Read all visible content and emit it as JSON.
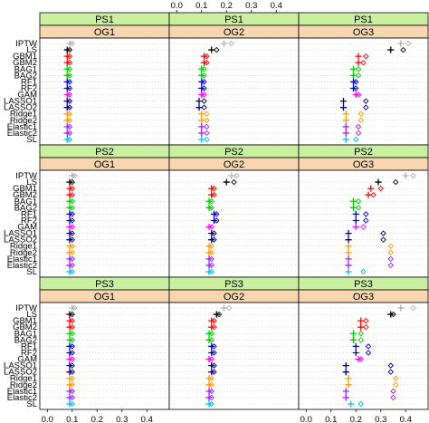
{
  "chart_data": {
    "type": "scatter",
    "x_ticks": [
      0.0,
      0.1,
      0.2,
      0.3,
      0.4
    ],
    "x_tick_labels": [
      "0.0",
      "0.1",
      "0.2",
      "0.3",
      "0.4"
    ],
    "xlim": [
      -0.03,
      0.49
    ],
    "methods": [
      "IPTW",
      "LS",
      "GBM1",
      "GBM2",
      "BAG1",
      "BAG2",
      "RF1",
      "RF2",
      "GAM",
      "LASSO1",
      "LASSO2",
      "Ridge1",
      "Ridge2",
      "Elastic1",
      "Elastic2",
      "SL"
    ],
    "method_colors": [
      "#b0b0b0",
      "#000000",
      "#ff0000",
      "#ff0000",
      "#00cc00",
      "#00cc00",
      "#0000cc",
      "#0000cc",
      "#ff00ff",
      "#000080",
      "#000080",
      "#ff9900",
      "#ff9900",
      "#a020f0",
      "#a020f0",
      "#00c0e0"
    ],
    "row_strips": [
      "PS1",
      "PS2",
      "PS3"
    ],
    "col_strips": [
      "OG1",
      "OG2",
      "OG3"
    ],
    "colors": {
      "ps_strip": "#c8f0a0",
      "og_strip": "#f8d6b0",
      "grid": "#cccccc"
    },
    "panels": [
      [
        {
          "plus": [
            0.09,
            0.08,
            0.08,
            0.08,
            0.08,
            0.08,
            0.08,
            0.08,
            0.08,
            0.08,
            0.08,
            0.08,
            0.08,
            0.08,
            0.08,
            0.08
          ],
          "diamond": [
            0.1,
            0.09,
            0.09,
            0.09,
            0.09,
            0.09,
            0.09,
            0.09,
            0.09,
            0.09,
            0.09,
            0.09,
            0.09,
            0.09,
            0.09,
            0.09
          ]
        },
        {
          "plus": [
            0.19,
            0.14,
            0.11,
            0.11,
            0.1,
            0.1,
            0.1,
            0.1,
            0.1,
            0.09,
            0.09,
            0.1,
            0.1,
            0.1,
            0.1,
            0.1
          ],
          "diamond": [
            0.22,
            0.16,
            0.12,
            0.12,
            0.11,
            0.11,
            0.11,
            0.11,
            0.11,
            0.11,
            0.11,
            0.12,
            0.12,
            0.12,
            0.12,
            0.12
          ]
        },
        {
          "plus": [
            0.38,
            0.34,
            0.21,
            0.21,
            0.19,
            0.19,
            0.19,
            0.19,
            0.2,
            0.15,
            0.15,
            0.16,
            0.16,
            0.16,
            0.16,
            0.16
          ],
          "diamond": [
            0.41,
            0.39,
            0.24,
            0.23,
            0.21,
            0.21,
            0.2,
            0.2,
            0.21,
            0.24,
            0.24,
            0.22,
            0.22,
            0.21,
            0.21,
            0.2
          ]
        }
      ],
      [
        {
          "plus": [
            0.1,
            0.09,
            0.09,
            0.09,
            0.09,
            0.09,
            0.09,
            0.09,
            0.09,
            0.09,
            0.09,
            0.09,
            0.09,
            0.09,
            0.09,
            0.09
          ],
          "diamond": [
            0.11,
            0.1,
            0.1,
            0.1,
            0.1,
            0.1,
            0.1,
            0.1,
            0.1,
            0.1,
            0.1,
            0.1,
            0.1,
            0.1,
            0.1,
            0.1
          ]
        },
        {
          "plus": [
            0.22,
            0.2,
            0.14,
            0.14,
            0.13,
            0.13,
            0.15,
            0.15,
            0.13,
            0.14,
            0.14,
            0.13,
            0.13,
            0.13,
            0.13,
            0.13
          ],
          "diamond": [
            0.24,
            0.23,
            0.15,
            0.15,
            0.14,
            0.14,
            0.16,
            0.16,
            0.14,
            0.15,
            0.15,
            0.14,
            0.14,
            0.14,
            0.14,
            0.14
          ]
        },
        {
          "plus": [
            0.4,
            0.29,
            0.26,
            0.25,
            0.19,
            0.19,
            0.2,
            0.2,
            0.2,
            0.17,
            0.17,
            0.17,
            0.17,
            0.17,
            0.17,
            0.17
          ],
          "diamond": [
            0.43,
            0.36,
            0.3,
            0.27,
            0.21,
            0.21,
            0.24,
            0.24,
            0.23,
            0.31,
            0.31,
            0.34,
            0.34,
            0.34,
            0.34,
            0.23
          ]
        }
      ],
      [
        {
          "plus": [
            0.1,
            0.09,
            0.09,
            0.09,
            0.09,
            0.09,
            0.09,
            0.09,
            0.09,
            0.09,
            0.09,
            0.09,
            0.09,
            0.09,
            0.09,
            0.09
          ],
          "diamond": [
            0.11,
            0.1,
            0.1,
            0.1,
            0.1,
            0.1,
            0.1,
            0.1,
            0.1,
            0.1,
            0.1,
            0.1,
            0.1,
            0.1,
            0.1,
            0.1
          ]
        },
        {
          "plus": [
            0.19,
            0.16,
            0.14,
            0.14,
            0.13,
            0.13,
            0.14,
            0.14,
            0.13,
            0.14,
            0.14,
            0.13,
            0.13,
            0.13,
            0.13,
            0.13
          ],
          "diamond": [
            0.21,
            0.17,
            0.15,
            0.15,
            0.14,
            0.14,
            0.15,
            0.15,
            0.14,
            0.15,
            0.15,
            0.14,
            0.14,
            0.14,
            0.14,
            0.14
          ]
        },
        {
          "plus": [
            0.38,
            0.34,
            0.22,
            0.22,
            0.19,
            0.19,
            0.2,
            0.2,
            0.21,
            0.16,
            0.16,
            0.17,
            0.17,
            0.16,
            0.16,
            0.18
          ],
          "diamond": [
            0.43,
            0.35,
            0.24,
            0.24,
            0.22,
            0.22,
            0.25,
            0.25,
            0.22,
            0.34,
            0.34,
            0.36,
            0.36,
            0.35,
            0.35,
            0.22
          ]
        }
      ]
    ]
  }
}
